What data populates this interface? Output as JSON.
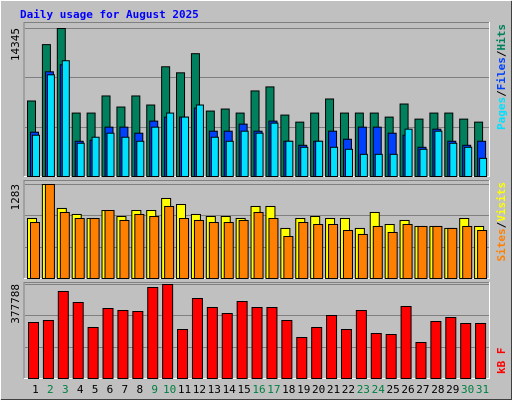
{
  "title": "Daily usage for August 2025",
  "chart_data": [
    {
      "type": "bar",
      "separator": "/",
      "ylim": [
        0,
        14345
      ],
      "yticks": [
        14345
      ],
      "series": [
        {
          "name": "Hits",
          "color": "#00805c",
          "values": [
            7319,
            12784,
            14345,
            6148,
            6148,
            7807,
            6733,
            7807,
            6929,
            10637,
            10051,
            11905,
            6343,
            6538,
            6148,
            8295,
            8685,
            5953,
            5270,
            6148,
            7514,
            6148,
            6148,
            6148,
            5757,
            7026,
            5562,
            6148,
            6148,
            5562,
            5270
          ]
        },
        {
          "name": "Files",
          "color": "#0040ff",
          "values": [
            4294,
            10149,
            10832,
            3415,
            3513,
            4782,
            4782,
            4196,
            5367,
            5758,
            5758,
            6636,
            4391,
            4391,
            5074,
            4391,
            5367,
            3415,
            3025,
            3415,
            4391,
            3611,
            4782,
            4782,
            4196,
            4001,
            2830,
            4587,
            3415,
            3025,
            3415
          ]
        },
        {
          "name": "Pages",
          "color": "#00e0ff",
          "values": [
            4001,
            9856,
            11222,
            3220,
            3806,
            4196,
            3806,
            3415,
            4782,
            6148,
            5758,
            6929,
            3806,
            3415,
            4391,
            4196,
            5172,
            3415,
            2830,
            3415,
            2830,
            2635,
            2147,
            2147,
            2147,
            4587,
            2635,
            4391,
            3220,
            2830,
            1757
          ]
        }
      ]
    },
    {
      "type": "bar",
      "separator": "/",
      "ylim": [
        0,
        1283
      ],
      "yticks": [
        1283
      ],
      "series": [
        {
          "name": "Visits",
          "color": "#ffff00",
          "values": [
            819,
            1283,
            956,
            874,
            819,
            928,
            846,
            928,
            928,
            1092,
            1010,
            874,
            846,
            846,
            819,
            983,
            983,
            683,
            819,
            846,
            819,
            819,
            683,
            901,
            737,
            792,
            710,
            710,
            683,
            819,
            710
          ]
        },
        {
          "name": "Sites",
          "color": "#ff8000",
          "values": [
            764,
            1283,
            901,
            819,
            819,
            928,
            792,
            874,
            846,
            983,
            819,
            792,
            764,
            764,
            792,
            901,
            819,
            573,
            764,
            737,
            737,
            655,
            601,
            710,
            628,
            737,
            710,
            710,
            683,
            710,
            655
          ]
        }
      ]
    },
    {
      "type": "bar",
      "ylim": [
        0,
        377788
      ],
      "yticks": [
        377788
      ],
      "categories": [
        "1",
        "2",
        "3",
        "4",
        "5",
        "6",
        "7",
        "8",
        "9",
        "10",
        "11",
        "12",
        "13",
        "14",
        "15",
        "16",
        "17",
        "18",
        "19",
        "20",
        "21",
        "22",
        "23",
        "24",
        "25",
        "26",
        "27",
        "28",
        "29",
        "30",
        "31"
      ],
      "label_colors": [
        "#000000",
        "#008040",
        "#008040",
        "#000000",
        "#000000",
        "#000000",
        "#000000",
        "#000000",
        "#008040",
        "#008040",
        "#000000",
        "#000000",
        "#000000",
        "#000000",
        "#000000",
        "#008040",
        "#008040",
        "#000000",
        "#000000",
        "#000000",
        "#000000",
        "#000000",
        "#008040",
        "#008040",
        "#000000",
        "#000000",
        "#000000",
        "#000000",
        "#000000",
        "#008040",
        "#008040"
      ],
      "series": [
        {
          "name": "kB F",
          "color": "#ff0000",
          "values": [
            225064,
            233102,
            349653,
            305444,
            204969,
            281330,
            273292,
            269273,
            365729,
            377788,
            196931,
            321520,
            285349,
            261235,
            309463,
            285349,
            285349,
            233102,
            164779,
            204969,
            253197,
            196931,
            273292,
            180855,
            176836,
            289368,
            144684,
            229083,
            245159,
            221045,
            221045
          ]
        }
      ]
    }
  ]
}
